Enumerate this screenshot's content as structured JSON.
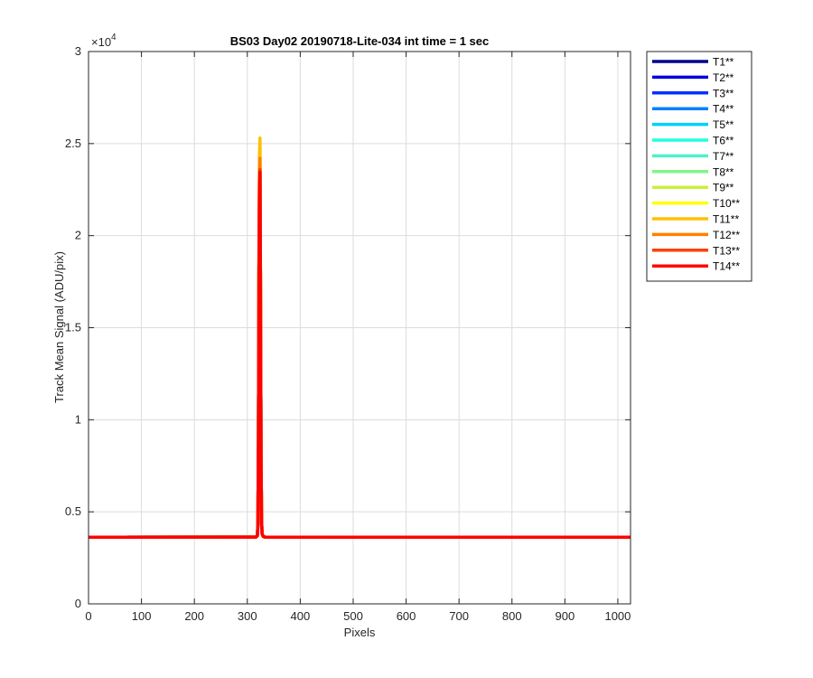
{
  "chart_data": {
    "type": "line",
    "title": "BS03 Day02 20190718-Lite-034 int time = 1 sec",
    "xlabel": "Pixels",
    "ylabel": "Track Mean Signal (ADU/pix)",
    "y_exponent_label": "×10",
    "y_exponent_value": "4",
    "xlim": [
      0,
      1024
    ],
    "ylim": [
      0,
      30000
    ],
    "x_ticks": [
      0,
      100,
      200,
      300,
      400,
      500,
      600,
      700,
      800,
      900,
      1000
    ],
    "x_tick_labels": [
      "0",
      "100",
      "200",
      "300",
      "400",
      "500",
      "600",
      "700",
      "800",
      "900",
      "1000"
    ],
    "y_ticks": [
      0,
      5000,
      10000,
      15000,
      20000,
      25000,
      30000
    ],
    "y_tick_labels": [
      "0",
      "0.5",
      "1",
      "1.5",
      "2",
      "2.5",
      "3"
    ],
    "grid": true,
    "legend_position": "outside-top-right",
    "baseline": 3620,
    "x": [
      0,
      316,
      319,
      320,
      321,
      322,
      323,
      324,
      325,
      326,
      327,
      328,
      330,
      334,
      1024
    ],
    "series": [
      {
        "name": "T1**",
        "color": "#00008f",
        "values": [
          3620,
          3625,
          3700,
          4300,
          9000,
          18000,
          21800,
          23300,
          16000,
          7500,
          4400,
          3800,
          3660,
          3625,
          3620
        ]
      },
      {
        "name": "T2**",
        "color": "#0000df",
        "values": [
          3620,
          3625,
          3700,
          4300,
          9000,
          18000,
          21900,
          23350,
          16000,
          7500,
          4400,
          3800,
          3660,
          3625,
          3620
        ]
      },
      {
        "name": "T3**",
        "color": "#0030ff",
        "values": [
          3620,
          3625,
          3700,
          4300,
          9000,
          18000,
          22000,
          23400,
          16000,
          7500,
          4400,
          3800,
          3660,
          3625,
          3620
        ]
      },
      {
        "name": "T4**",
        "color": "#0080ff",
        "values": [
          3620,
          3625,
          3700,
          4300,
          9000,
          18000,
          22100,
          23450,
          16000,
          7500,
          4400,
          3800,
          3660,
          3625,
          3620
        ]
      },
      {
        "name": "T5**",
        "color": "#00cfff",
        "values": [
          3620,
          3625,
          3700,
          4300,
          9000,
          18000,
          22200,
          23500,
          16000,
          7500,
          4400,
          3800,
          3660,
          3625,
          3620
        ]
      },
      {
        "name": "T6**",
        "color": "#20ffdf",
        "values": [
          3620,
          3625,
          3700,
          4300,
          9000,
          18000,
          22300,
          23550,
          16000,
          7500,
          4400,
          3800,
          3660,
          3625,
          3620
        ]
      },
      {
        "name": "T7**",
        "color": "#50f0c8",
        "values": [
          3620,
          3625,
          3700,
          4300,
          9000,
          18000,
          22400,
          23600,
          16000,
          7500,
          4400,
          3800,
          3660,
          3625,
          3620
        ]
      },
      {
        "name": "T8**",
        "color": "#80f58a",
        "values": [
          3620,
          3625,
          3700,
          4300,
          9000,
          18000,
          22500,
          23650,
          16000,
          7500,
          4400,
          3800,
          3660,
          3625,
          3620
        ]
      },
      {
        "name": "T9**",
        "color": "#c8f040",
        "values": [
          3620,
          3625,
          3700,
          4300,
          9000,
          18000,
          22600,
          23700,
          16000,
          7500,
          4400,
          3800,
          3660,
          3625,
          3620
        ]
      },
      {
        "name": "T10**",
        "color": "#ffff00",
        "values": [
          3620,
          3625,
          3700,
          4300,
          9000,
          18500,
          23500,
          24800,
          16500,
          7600,
          4400,
          3800,
          3660,
          3625,
          3620
        ]
      },
      {
        "name": "T11**",
        "color": "#ffbf00",
        "values": [
          3620,
          3625,
          3700,
          4300,
          9000,
          19000,
          24500,
          25300,
          17000,
          7700,
          4400,
          3800,
          3660,
          3625,
          3620
        ]
      },
      {
        "name": "T12**",
        "color": "#ff8000",
        "values": [
          3620,
          3625,
          3700,
          4300,
          9000,
          18500,
          23500,
          24200,
          16500,
          7600,
          4400,
          3800,
          3660,
          3625,
          3620
        ]
      },
      {
        "name": "T13**",
        "color": "#ff4000",
        "values": [
          3620,
          3625,
          3700,
          4300,
          9000,
          18200,
          22800,
          23600,
          16200,
          7550,
          4400,
          3800,
          3660,
          3625,
          3620
        ]
      },
      {
        "name": "T14**",
        "color": "#ff0000",
        "values": [
          3620,
          3625,
          3700,
          4300,
          9000,
          18000,
          22500,
          23450,
          16000,
          7500,
          4400,
          3800,
          3660,
          3625,
          3620
        ]
      }
    ]
  }
}
